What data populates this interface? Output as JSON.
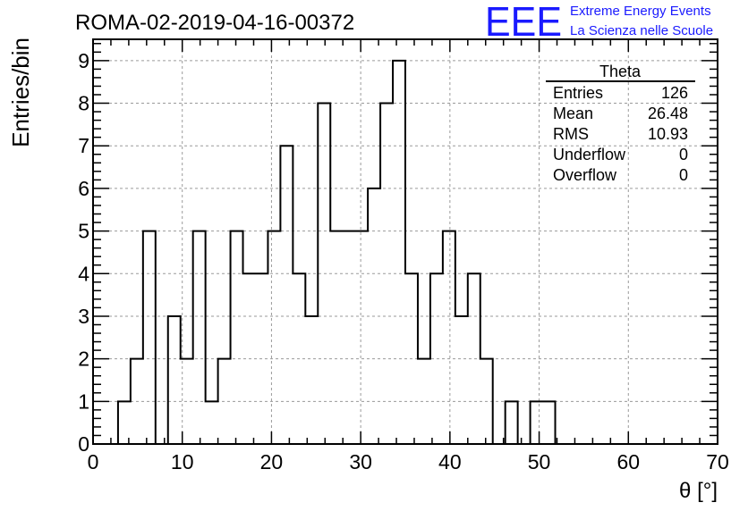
{
  "header": {
    "title": "ROMA-02-2019-04-16-00372",
    "logo_text": "EEE",
    "logo_line1": "Extreme Energy Events",
    "logo_line2": "La Scienza nelle Scuole",
    "logo_color": "#1a1aff"
  },
  "stats": {
    "title": "Theta",
    "rows": [
      {
        "label": "Entries",
        "value": "126"
      },
      {
        "label": "Mean",
        "value": "26.48"
      },
      {
        "label": "RMS",
        "value": "10.93"
      },
      {
        "label": "Underflow",
        "value": "0"
      },
      {
        "label": "Overflow",
        "value": "0"
      }
    ]
  },
  "chart_data": {
    "type": "histogram",
    "title": "ROMA-02-2019-04-16-00372",
    "xlabel": "θ [°]",
    "ylabel": "Entries/bin",
    "xlim": [
      0,
      70
    ],
    "ylim": [
      0,
      9.5
    ],
    "grid": true,
    "line_color": "#000000",
    "bin_width": 1.4,
    "bin_start": 0,
    "x_ticks": [
      0,
      10,
      20,
      30,
      40,
      50,
      60,
      70
    ],
    "y_ticks": [
      0,
      1,
      2,
      3,
      4,
      5,
      6,
      7,
      8,
      9
    ],
    "values": [
      0,
      0,
      1,
      2,
      5,
      0,
      3,
      2,
      5,
      1,
      2,
      5,
      4,
      4,
      5,
      7,
      4,
      3,
      8,
      5,
      5,
      5,
      6,
      8,
      9,
      4,
      2,
      4,
      5,
      3,
      4,
      2,
      0,
      1,
      0,
      1,
      1,
      0,
      0,
      0,
      0,
      0,
      0,
      0,
      0,
      0,
      0,
      0,
      0,
      0
    ]
  }
}
